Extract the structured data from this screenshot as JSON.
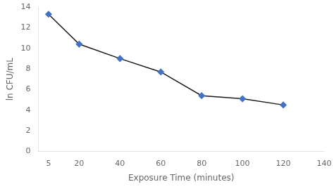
{
  "chart_data": {
    "type": "line",
    "xlabel": "Exposure Time (minutes)",
    "ylabel": "ln CFU/mL",
    "x": [
      5,
      20,
      40,
      60,
      80,
      100,
      120
    ],
    "values": [
      13.3,
      10.4,
      9.0,
      7.7,
      5.4,
      5.1,
      4.5
    ],
    "color": "#1a1a1a",
    "colors": [
      "#4472c4",
      "#4472c4",
      "#4472c4",
      "#4472c4",
      "#4472c4",
      "#4472c4",
      "#4472c4"
    ],
    "marker": "diamond",
    "xlim": [
      0,
      140
    ],
    "ylim": [
      0,
      14
    ],
    "xticks": [
      5,
      20,
      40,
      60,
      80,
      100,
      120,
      140
    ],
    "yticks": [
      0,
      2,
      4,
      6,
      8,
      10,
      12,
      14
    ],
    "grid": false
  }
}
